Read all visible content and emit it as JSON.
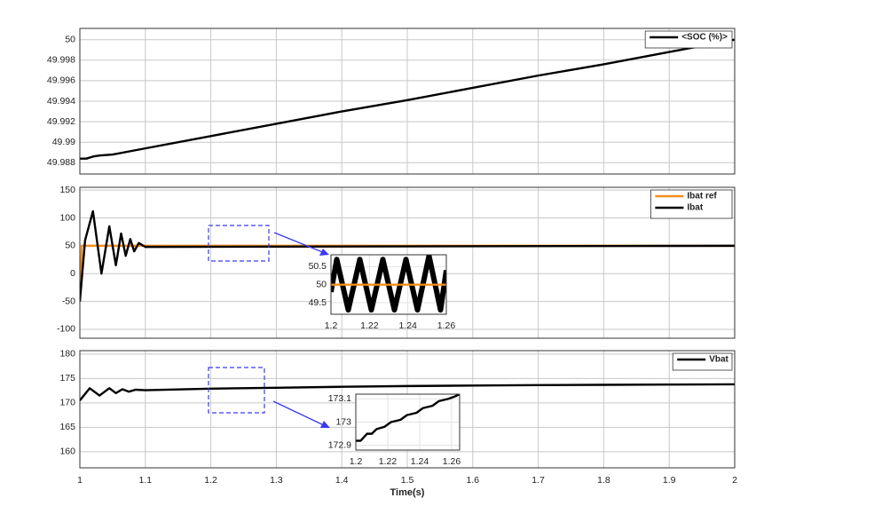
{
  "chart_data": [
    {
      "type": "line",
      "xlim": [
        1,
        2
      ],
      "ylim": [
        49.9869,
        50.0011
      ],
      "xticks": [
        1,
        1.1,
        1.2,
        1.3,
        1.4,
        1.5,
        1.6,
        1.7,
        1.8,
        1.9,
        2
      ],
      "show_xtick_labels": false,
      "yticks": [
        49.988,
        49.99,
        49.992,
        49.994,
        49.996,
        49.998,
        50
      ],
      "grid": true,
      "legend": "upper right",
      "series": [
        {
          "name": "<SOC (%)>",
          "color": "#000000",
          "x": [
            1,
            1.01,
            1.02,
            1.03,
            1.05,
            1.1,
            1.2,
            1.3,
            1.4,
            1.5,
            1.6,
            1.7,
            1.8,
            1.9,
            2
          ],
          "values": [
            49.9884,
            49.9884,
            49.9886,
            49.9887,
            49.9888,
            49.9894,
            49.9906,
            49.9918,
            49.993,
            49.9941,
            49.9953,
            49.9965,
            49.9976,
            49.9988,
            50.0
          ]
        }
      ]
    },
    {
      "type": "line",
      "xlim": [
        1,
        2
      ],
      "ylim": [
        -116,
        155
      ],
      "xticks": [
        1,
        1.1,
        1.2,
        1.3,
        1.4,
        1.5,
        1.6,
        1.7,
        1.8,
        1.9,
        2
      ],
      "show_xtick_labels": false,
      "yticks": [
        -100,
        -50,
        0,
        50,
        100,
        150
      ],
      "grid": true,
      "legend": "upper right",
      "series": [
        {
          "name": "Ibat ref",
          "color": "#f28e1c",
          "x": [
            1,
            1.003,
            2
          ],
          "values": [
            -50,
            50,
            50
          ]
        },
        {
          "name": "Ibat",
          "color": "#000000",
          "x": [
            1,
            1.008,
            1.02,
            1.033,
            1.045,
            1.055,
            1.063,
            1.07,
            1.077,
            1.083,
            1.09,
            1.1,
            2
          ],
          "values": [
            -50,
            60,
            112,
            0,
            85,
            15,
            72,
            32,
            62,
            40,
            55,
            48,
            50
          ]
        }
      ]
    },
    {
      "type": "line",
      "xlim": [
        1,
        2
      ],
      "ylim": [
        156.7,
        180.7
      ],
      "xticks": [
        1,
        1.1,
        1.2,
        1.3,
        1.4,
        1.5,
        1.6,
        1.7,
        1.8,
        1.9,
        2
      ],
      "show_xtick_labels": true,
      "yticks": [
        160,
        165,
        170,
        175,
        180
      ],
      "grid": true,
      "legend": "upper right",
      "xlabel": "Time(s)",
      "series": [
        {
          "name": "Vbat",
          "color": "#000000",
          "x": [
            1,
            1.015,
            1.03,
            1.045,
            1.055,
            1.065,
            1.075,
            1.085,
            1.1,
            1.2,
            1.3,
            1.4,
            1.5,
            1.6,
            1.7,
            1.8,
            1.9,
            2
          ],
          "values": [
            170.5,
            173,
            171.5,
            173,
            172,
            172.8,
            172.3,
            172.7,
            172.6,
            172.92,
            173.1,
            173.3,
            173.45,
            173.55,
            173.65,
            173.7,
            173.75,
            173.8
          ]
        }
      ]
    },
    {
      "type": "line",
      "xlim": [
        1.2,
        1.26
      ],
      "ylim": [
        49.18,
        50.83
      ],
      "xticks": [
        1.2,
        1.22,
        1.24,
        1.26
      ],
      "show_xtick_labels": true,
      "yticks": [
        49.5,
        50,
        50.5
      ],
      "grid": true,
      "series": [
        {
          "color": "#000000",
          "width": 6,
          "x": [
            1.2,
            1.203,
            1.209,
            1.215,
            1.221,
            1.227,
            1.233,
            1.239,
            1.245,
            1.251,
            1.257,
            1.26
          ],
          "values": [
            49.8,
            50.7,
            49.3,
            50.7,
            49.3,
            50.7,
            49.3,
            50.7,
            49.3,
            50.8,
            49.3,
            50.4
          ]
        },
        {
          "color": "#f28e1c",
          "x": [
            1.2,
            1.26
          ],
          "values": [
            50,
            50
          ]
        }
      ]
    },
    {
      "type": "line",
      "xlim": [
        1.2,
        1.265
      ],
      "ylim": [
        172.88,
        173.12
      ],
      "xticks": [
        1.2,
        1.22,
        1.24,
        1.26
      ],
      "show_xtick_labels": true,
      "yticks": [
        172.9,
        173,
        173.1
      ],
      "grid": true,
      "series": [
        {
          "color": "#000000",
          "x": [
            1.2,
            1.203,
            1.207,
            1.21,
            1.213,
            1.218,
            1.222,
            1.228,
            1.232,
            1.238,
            1.242,
            1.248,
            1.252,
            1.258,
            1.262,
            1.265
          ],
          "values": [
            172.92,
            172.92,
            172.95,
            172.95,
            172.97,
            172.98,
            173.0,
            173.01,
            173.03,
            173.04,
            173.06,
            173.07,
            173.09,
            173.1,
            173.11,
            173.12
          ]
        }
      ]
    }
  ]
}
